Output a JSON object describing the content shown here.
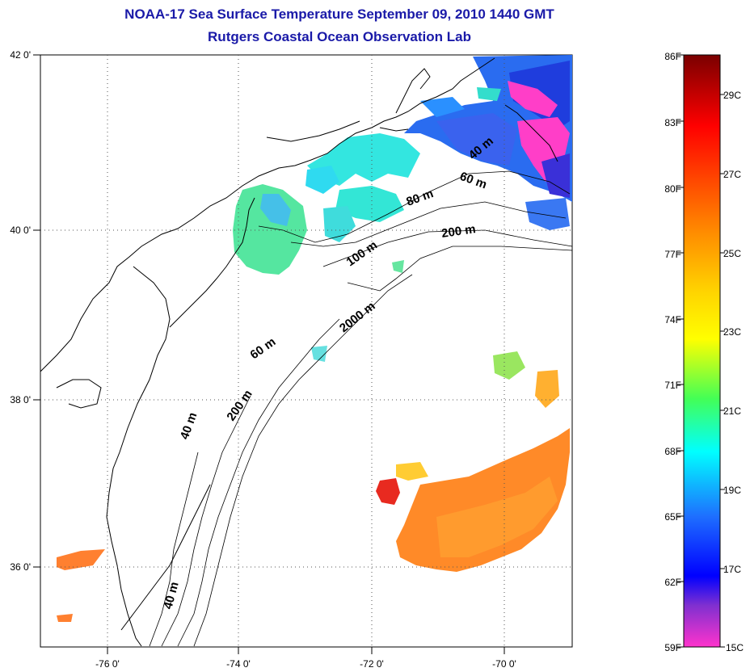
{
  "header": {
    "title": "NOAA-17 Sea Surface Temperature September 09, 2010 1440 GMT",
    "subtitle": "Rutgers Coastal Ocean Observation Lab"
  },
  "map": {
    "lon_ticks": [
      "-76 0'",
      "-74 0'",
      "-72 0'",
      "-70 0'"
    ],
    "lat_ticks": [
      "42 0'",
      "40 0'",
      "38 0'",
      "36 0'"
    ],
    "lon_range": [
      -77,
      -69
    ],
    "lat_range": [
      35,
      42
    ],
    "grid": "dotted",
    "isobath_labels": [
      "40 m",
      "60 m",
      "80 m",
      "200 m",
      "100 m",
      "2000 m",
      "60 m",
      "200 m",
      "40 m",
      "40 m"
    ]
  },
  "colorbar": {
    "f_labels": [
      "86F",
      "83F",
      "80F",
      "77F",
      "74F",
      "71F",
      "68F",
      "65F",
      "62F",
      "59F"
    ],
    "c_labels": [
      "29C",
      "27C",
      "25C",
      "23C",
      "21C",
      "19C",
      "17C",
      "15C"
    ],
    "colors": [
      "#7a0000",
      "#ff0000",
      "#ff7f00",
      "#ffff00",
      "#33ff66",
      "#00ffff",
      "#0000ff",
      "#ff33cc"
    ]
  }
}
